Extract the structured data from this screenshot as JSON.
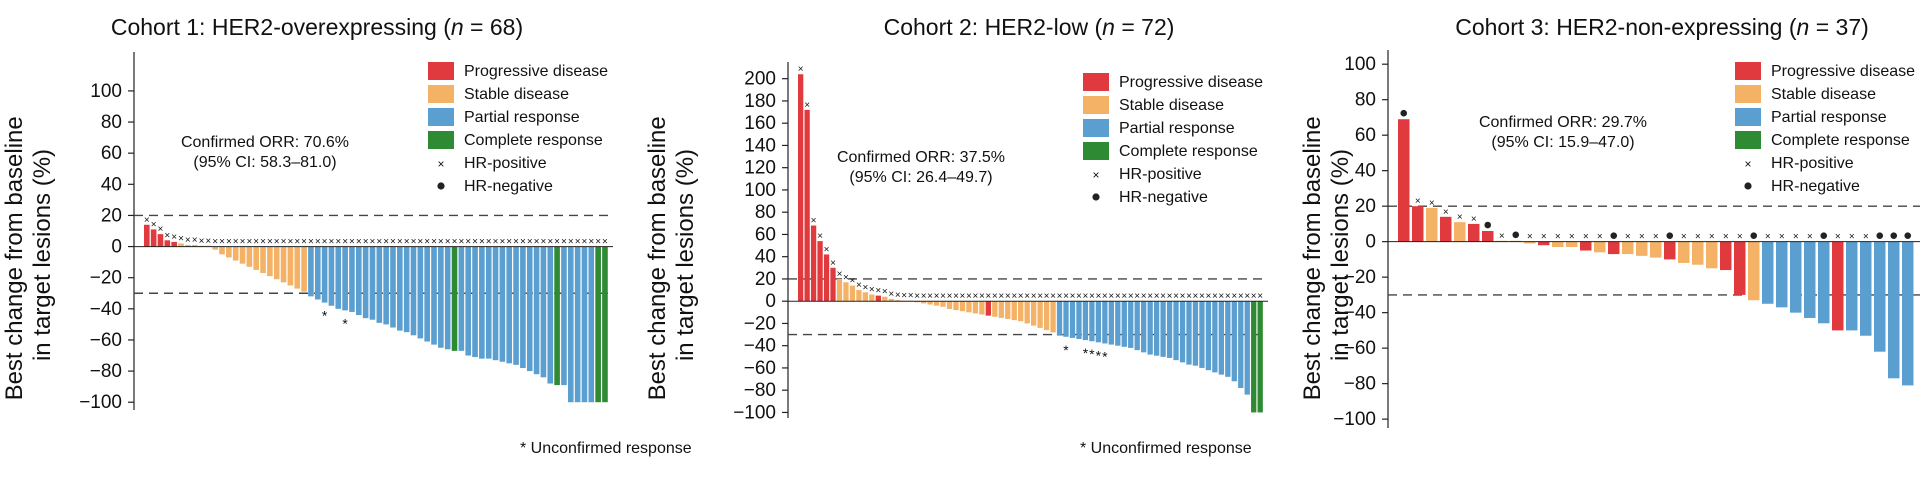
{
  "figure": {
    "legend": {
      "progressive": "Progressive disease",
      "stable": "Stable disease",
      "partial": "Partial response",
      "complete": "Complete response",
      "hr_positive": "HR-positive",
      "hr_negative": "HR-negative"
    },
    "footnote": "* Unconfirmed response",
    "ylabel_line1": "Best change from baseline",
    "ylabel_line2": "in target lesions (%)"
  },
  "chart_data": [
    {
      "type": "bar",
      "title_prefix": "Cohort 1: HER2-overexpressing (",
      "title_n": "n",
      "title_suffix": " = 68)",
      "ylabel": "Best change from baseline in target lesions (%)",
      "ylim": [
        -105,
        125
      ],
      "yticks": [
        -100,
        -80,
        -60,
        -40,
        -20,
        0,
        20,
        40,
        60,
        80,
        100
      ],
      "reference_lines": [
        20,
        -30
      ],
      "orr_line1": "Confirmed ORR: 70.6%",
      "orr_line2": "(95% CI: 58.3–81.0)",
      "footnote": "* Unconfirmed response",
      "colors": {
        "P": "#e03a3e",
        "S": "#f4b266",
        "R": "#5b9fd0",
        "C": "#2f8a34"
      },
      "values": [
        14,
        11,
        8,
        4,
        3,
        2,
        1,
        1,
        0.5,
        0.5,
        -2,
        -5,
        -7,
        -9,
        -11,
        -13,
        -15,
        -17,
        -19,
        -21,
        -23,
        -25,
        -27,
        -29,
        -32,
        -34,
        -36,
        -38,
        -40,
        -41,
        -42,
        -44,
        -46,
        -47,
        -49,
        -50,
        -52,
        -54,
        -55,
        -57,
        -59,
        -61,
        -63,
        -65,
        -66,
        -67,
        -67,
        -70,
        -71,
        -72,
        -72,
        -73,
        -74,
        -75,
        -76,
        -78,
        -80,
        -82,
        -84,
        -88,
        -89,
        -89,
        -100,
        -100,
        -100,
        -100,
        -100,
        -100
      ],
      "response": "PPPPPSSSSSSSSSSSSSSSSSSSRRRRRRRRRRRRRRRRRRRRRCRRRRRRRRRRRRRRCRRRRRCCC",
      "hr_markers": "xxxxxxxxxxxxxxxxxxxxxxxxxxxxxxxxxxxxxxxxxxxxxxxxxxxxxxxxxxxxxxxxxxxx",
      "unconfirmed_index": [
        26,
        29
      ]
    },
    {
      "type": "bar",
      "title_prefix": "Cohort 2: HER2-low (",
      "title_n": "n",
      "title_suffix": " = 72)",
      "ylabel": "Best change from baseline in target lesions (%)",
      "ylim": [
        -105,
        215
      ],
      "yticks": [
        -100,
        -80,
        -60,
        -40,
        -20,
        0,
        20,
        40,
        60,
        80,
        100,
        120,
        140,
        160,
        180,
        200
      ],
      "reference_lines": [
        20,
        -30
      ],
      "orr_line1": "Confirmed ORR: 37.5%",
      "orr_line2": "(95% CI: 26.4–49.7)",
      "footnote": "* Unconfirmed response",
      "colors": {
        "P": "#e03a3e",
        "S": "#f4b266",
        "R": "#5b9fd0",
        "C": "#2f8a34"
      },
      "values": [
        204,
        172,
        68,
        54,
        42,
        30,
        20,
        17,
        14,
        10,
        8,
        6,
        5,
        4,
        2,
        1,
        0.5,
        0.5,
        -1,
        -2,
        -3,
        -4,
        -5,
        -7,
        -8,
        -9,
        -10,
        -11,
        -12,
        -13,
        -14,
        -15,
        -16,
        -17,
        -18,
        -20,
        -22,
        -24,
        -26,
        -28,
        -31,
        -32,
        -33,
        -34,
        -35,
        -36,
        -37,
        -38,
        -39,
        -40,
        -41,
        -42,
        -44,
        -46,
        -48,
        -49,
        -50,
        -51,
        -53,
        -55,
        -57,
        -58,
        -60,
        -62,
        -64,
        -66,
        -68,
        -72,
        -78,
        -84,
        -100,
        -100
      ],
      "response": "PPPPPPSSSSSSPSSSSSSSSSSSSSSSSPSSSSSSSSSSRRRRRRRRRRRRRRRRRRRRRRRRRRRRRRCC",
      "hr_markers": "xxxxxxxxxxxxxxxxxxxxxxxxxxxxxxxxxxxxxxxxxxxxxxxxxxxxxxxxxxxxxxxxxxxxxxxx",
      "unconfirmed_index": [
        41,
        44,
        45,
        46,
        47
      ]
    },
    {
      "type": "bar",
      "title_prefix": "Cohort 3: HER2-non-expressing (",
      "title_n": "n",
      "title_suffix": " = 37)",
      "ylabel": "Best change from baseline in target lesions (%)",
      "ylim": [
        -105,
        108
      ],
      "yticks": [
        -100,
        -80,
        -60,
        -40,
        -20,
        0,
        20,
        40,
        60,
        80,
        100
      ],
      "reference_lines": [
        20,
        -30
      ],
      "orr_line1": "Confirmed ORR: 29.7%",
      "orr_line2": "(95% CI: 15.9–47.0)",
      "colors": {
        "P": "#e03a3e",
        "S": "#f4b266",
        "R": "#5b9fd0",
        "C": "#2f8a34"
      },
      "values": [
        69,
        20,
        19,
        14,
        11,
        10,
        6,
        0.5,
        0.5,
        -1,
        -2,
        -3,
        -3,
        -5,
        -6,
        -7,
        -7,
        -8,
        -9,
        -10,
        -12,
        -13,
        -15,
        -16,
        -30,
        -33,
        -35,
        -37,
        -40,
        -43,
        -46,
        -50,
        -50,
        -53,
        -62,
        -77,
        -81
      ],
      "response": "PPSPSPPSSSPSSPSPSSSPSSSPPSRRRRRPRRRRR",
      "hr_markers": "oxxxxxoxoxxxxxxoxxxoxxxxxoxxxxoxxxooo",
      "no_marker_index": []
    }
  ]
}
